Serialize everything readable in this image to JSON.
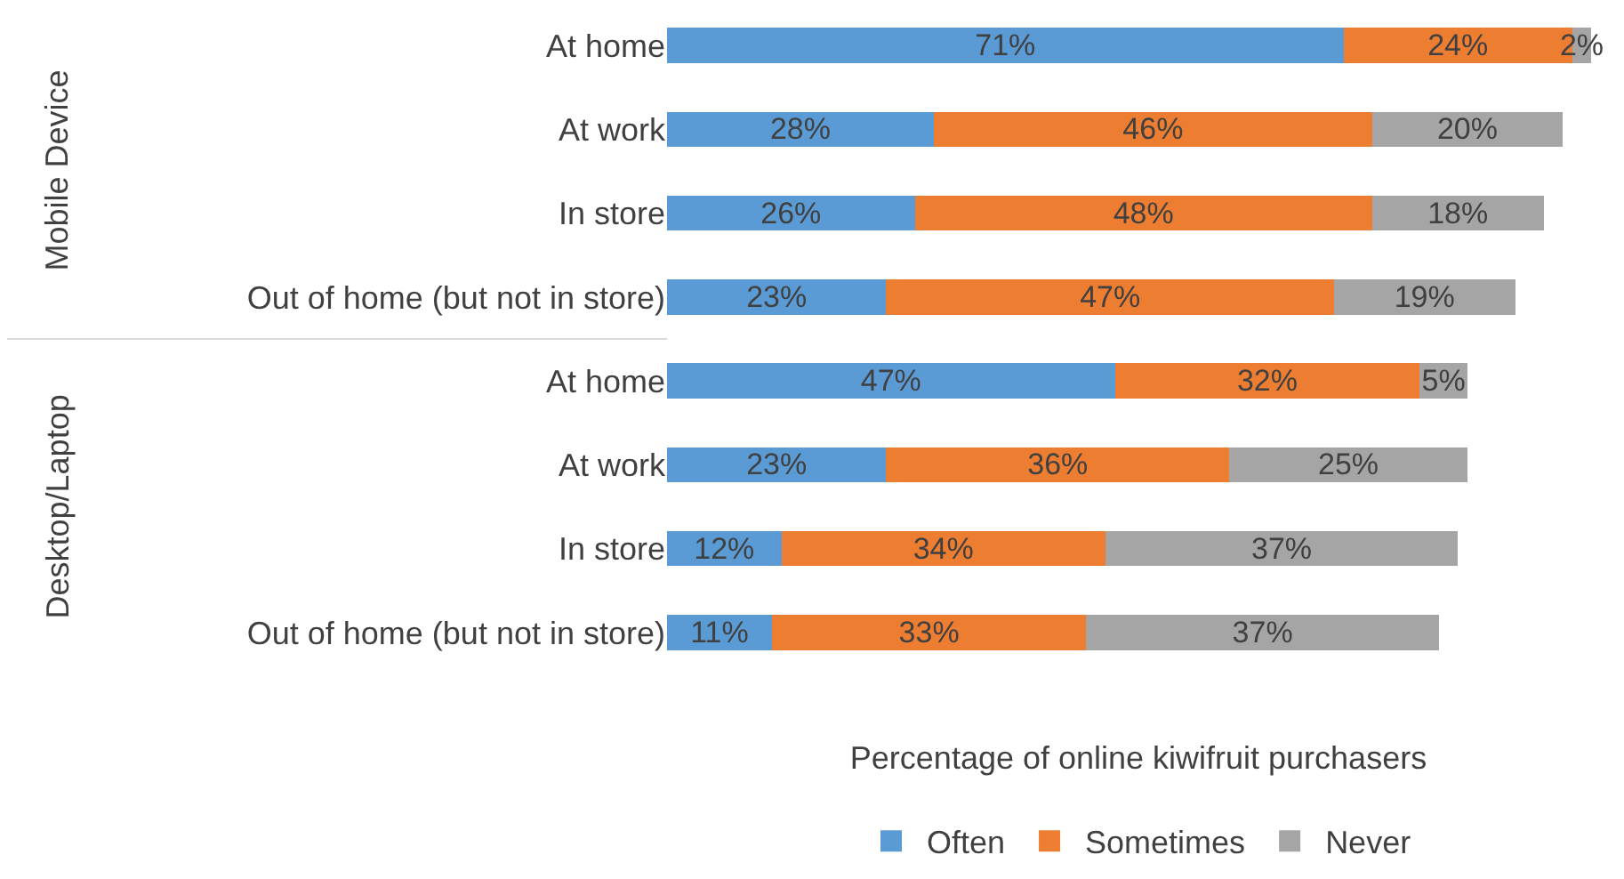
{
  "chart_data": {
    "type": "bar",
    "orientation": "horizontal",
    "stacked": true,
    "xlabel": "Percentage of online kiwifruit purchasers",
    "legend": "bottom",
    "tick_labels": "y",
    "categories": [
      "At home",
      "At work",
      "In store",
      "Out of home (but not in store)",
      "At home",
      "At work",
      "In store",
      "Out of home (but not in store)"
    ],
    "annotations": [
      "Mobile Device",
      "Desktop/Laptop"
    ],
    "series": [
      {
        "name": "Often",
        "color": "#5b9bd5",
        "values": [
          71,
          28,
          26,
          23,
          47,
          23,
          12,
          11
        ],
        "value_labels": [
          "71%",
          "28%",
          "26%",
          "23%",
          "47%",
          "23%",
          "12%",
          "11%"
        ]
      },
      {
        "name": "Sometimes",
        "color": "#ed7d31",
        "values": [
          24,
          46,
          48,
          47,
          32,
          36,
          34,
          33
        ],
        "value_labels": [
          "24%",
          "46%",
          "48%",
          "47%",
          "32%",
          "36%",
          "34%",
          "33%"
        ]
      },
      {
        "name": "Never",
        "color": "#a5a5a5",
        "values": [
          2,
          20,
          18,
          19,
          5,
          25,
          37,
          37
        ],
        "value_labels": [
          "2%",
          "20%",
          "18%",
          "19%",
          "5%",
          "25%",
          "37%",
          "37%"
        ]
      }
    ]
  }
}
